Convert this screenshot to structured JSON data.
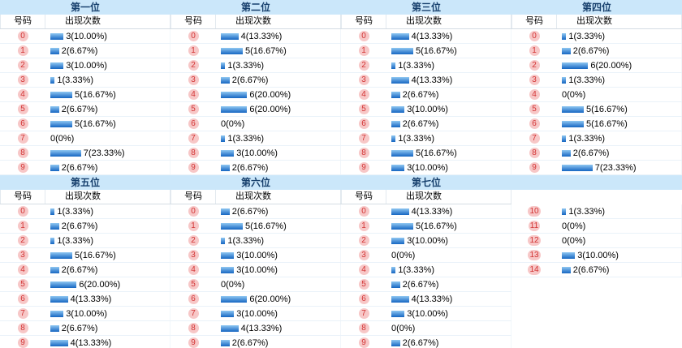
{
  "page": {
    "type": "lottery-number-frequency-statistics"
  },
  "colors": {
    "header_bg": "#cbe7fa",
    "header_text": "#17406d",
    "badge_bg": "#f7c7c7",
    "badge_text": "#d23434",
    "bar_top": "#8fc7f2",
    "bar_bottom": "#1566c2"
  },
  "subheader": {
    "num": "号码",
    "count": "出现次数"
  },
  "sections": [
    {
      "title": "第一位",
      "headers": true,
      "rows": [
        {
          "num": "0",
          "count": 3,
          "label": "3(10.00%)"
        },
        {
          "num": "1",
          "count": 2,
          "label": "2(6.67%)"
        },
        {
          "num": "2",
          "count": 3,
          "label": "3(10.00%)"
        },
        {
          "num": "3",
          "count": 1,
          "label": "1(3.33%)"
        },
        {
          "num": "4",
          "count": 5,
          "label": "5(16.67%)"
        },
        {
          "num": "5",
          "count": 2,
          "label": "2(6.67%)"
        },
        {
          "num": "6",
          "count": 5,
          "label": "5(16.67%)"
        },
        {
          "num": "7",
          "count": 0,
          "label": "0(0%)"
        },
        {
          "num": "8",
          "count": 7,
          "label": "7(23.33%)"
        },
        {
          "num": "9",
          "count": 2,
          "label": "2(6.67%)"
        }
      ]
    },
    {
      "title": "第二位",
      "headers": true,
      "rows": [
        {
          "num": "0",
          "count": 4,
          "label": "4(13.33%)"
        },
        {
          "num": "1",
          "count": 5,
          "label": "5(16.67%)"
        },
        {
          "num": "2",
          "count": 1,
          "label": "1(3.33%)"
        },
        {
          "num": "3",
          "count": 2,
          "label": "2(6.67%)"
        },
        {
          "num": "4",
          "count": 6,
          "label": "6(20.00%)"
        },
        {
          "num": "5",
          "count": 6,
          "label": "6(20.00%)"
        },
        {
          "num": "6",
          "count": 0,
          "label": "0(0%)"
        },
        {
          "num": "7",
          "count": 1,
          "label": "1(3.33%)"
        },
        {
          "num": "8",
          "count": 3,
          "label": "3(10.00%)"
        },
        {
          "num": "9",
          "count": 2,
          "label": "2(6.67%)"
        }
      ]
    },
    {
      "title": "第三位",
      "headers": true,
      "rows": [
        {
          "num": "0",
          "count": 4,
          "label": "4(13.33%)"
        },
        {
          "num": "1",
          "count": 5,
          "label": "5(16.67%)"
        },
        {
          "num": "2",
          "count": 1,
          "label": "1(3.33%)"
        },
        {
          "num": "3",
          "count": 4,
          "label": "4(13.33%)"
        },
        {
          "num": "4",
          "count": 2,
          "label": "2(6.67%)"
        },
        {
          "num": "5",
          "count": 3,
          "label": "3(10.00%)"
        },
        {
          "num": "6",
          "count": 2,
          "label": "2(6.67%)"
        },
        {
          "num": "7",
          "count": 1,
          "label": "1(3.33%)"
        },
        {
          "num": "8",
          "count": 5,
          "label": "5(16.67%)"
        },
        {
          "num": "9",
          "count": 3,
          "label": "3(10.00%)"
        }
      ]
    },
    {
      "title": "第四位",
      "headers": true,
      "rows": [
        {
          "num": "0",
          "count": 1,
          "label": "1(3.33%)"
        },
        {
          "num": "1",
          "count": 2,
          "label": "2(6.67%)"
        },
        {
          "num": "2",
          "count": 6,
          "label": "6(20.00%)"
        },
        {
          "num": "3",
          "count": 1,
          "label": "1(3.33%)"
        },
        {
          "num": "4",
          "count": 0,
          "label": "0(0%)"
        },
        {
          "num": "5",
          "count": 5,
          "label": "5(16.67%)"
        },
        {
          "num": "6",
          "count": 5,
          "label": "5(16.67%)"
        },
        {
          "num": "7",
          "count": 1,
          "label": "1(3.33%)"
        },
        {
          "num": "8",
          "count": 2,
          "label": "2(6.67%)"
        },
        {
          "num": "9",
          "count": 7,
          "label": "7(23.33%)"
        }
      ]
    },
    {
      "title": "第五位",
      "headers": true,
      "rows": [
        {
          "num": "0",
          "count": 1,
          "label": "1(3.33%)"
        },
        {
          "num": "1",
          "count": 2,
          "label": "2(6.67%)"
        },
        {
          "num": "2",
          "count": 1,
          "label": "1(3.33%)"
        },
        {
          "num": "3",
          "count": 5,
          "label": "5(16.67%)"
        },
        {
          "num": "4",
          "count": 2,
          "label": "2(6.67%)"
        },
        {
          "num": "5",
          "count": 6,
          "label": "6(20.00%)"
        },
        {
          "num": "6",
          "count": 4,
          "label": "4(13.33%)"
        },
        {
          "num": "7",
          "count": 3,
          "label": "3(10.00%)"
        },
        {
          "num": "8",
          "count": 2,
          "label": "2(6.67%)"
        },
        {
          "num": "9",
          "count": 4,
          "label": "4(13.33%)"
        }
      ]
    },
    {
      "title": "第六位",
      "headers": true,
      "rows": [
        {
          "num": "0",
          "count": 2,
          "label": "2(6.67%)"
        },
        {
          "num": "1",
          "count": 5,
          "label": "5(16.67%)"
        },
        {
          "num": "2",
          "count": 1,
          "label": "1(3.33%)"
        },
        {
          "num": "3",
          "count": 3,
          "label": "3(10.00%)"
        },
        {
          "num": "4",
          "count": 3,
          "label": "3(10.00%)"
        },
        {
          "num": "5",
          "count": 0,
          "label": "0(0%)"
        },
        {
          "num": "6",
          "count": 6,
          "label": "6(20.00%)"
        },
        {
          "num": "7",
          "count": 3,
          "label": "3(10.00%)"
        },
        {
          "num": "8",
          "count": 4,
          "label": "4(13.33%)"
        },
        {
          "num": "9",
          "count": 2,
          "label": "2(6.67%)"
        }
      ]
    },
    {
      "title": "第七位",
      "headers": true,
      "rows": [
        {
          "num": "0",
          "count": 4,
          "label": "4(13.33%)"
        },
        {
          "num": "1",
          "count": 5,
          "label": "5(16.67%)"
        },
        {
          "num": "2",
          "count": 3,
          "label": "3(10.00%)"
        },
        {
          "num": "3",
          "count": 0,
          "label": "0(0%)"
        },
        {
          "num": "4",
          "count": 1,
          "label": "1(3.33%)"
        },
        {
          "num": "5",
          "count": 2,
          "label": "2(6.67%)"
        },
        {
          "num": "6",
          "count": 4,
          "label": "4(13.33%)"
        },
        {
          "num": "7",
          "count": 3,
          "label": "3(10.00%)"
        },
        {
          "num": "8",
          "count": 0,
          "label": "0(0%)"
        },
        {
          "num": "9",
          "count": 2,
          "label": "2(6.67%)"
        }
      ]
    },
    {
      "title": "",
      "headers": false,
      "rows": [
        {
          "num": "10",
          "count": 1,
          "label": "1(3.33%)"
        },
        {
          "num": "11",
          "count": 0,
          "label": "0(0%)"
        },
        {
          "num": "12",
          "count": 0,
          "label": "0(0%)"
        },
        {
          "num": "13",
          "count": 3,
          "label": "3(10.00%)"
        },
        {
          "num": "14",
          "count": 2,
          "label": "2(6.67%)"
        }
      ]
    }
  ]
}
